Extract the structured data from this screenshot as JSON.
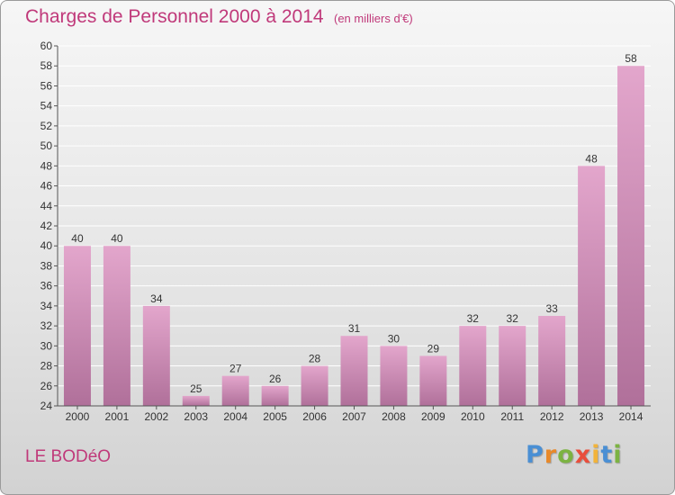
{
  "title": "Charges de Personnel 2000 à 2014",
  "subtitle": "(en milliers d'€)",
  "commune": "LE BODéO",
  "logo_letters": [
    "P",
    "r",
    "o",
    "x",
    "i",
    "t",
    "i"
  ],
  "colors": {
    "title": "#c0397a",
    "bar_top": "#e3a6cc",
    "bar_bottom": "#b0709a",
    "grid": "#ffffff",
    "axis": "#555555"
  },
  "chart_data": {
    "type": "bar",
    "title": "Charges de Personnel 2000 à 2014",
    "subtitle": "(en milliers d'€)",
    "xlabel": "",
    "ylabel": "",
    "categories": [
      "2000",
      "2001",
      "2002",
      "2003",
      "2004",
      "2005",
      "2006",
      "2007",
      "2008",
      "2009",
      "2010",
      "2011",
      "2012",
      "2013",
      "2014"
    ],
    "values": [
      40,
      40,
      34,
      25,
      27,
      26,
      28,
      31,
      30,
      29,
      32,
      32,
      33,
      48,
      58
    ],
    "ylim": [
      24,
      60
    ],
    "yticks": [
      24,
      26,
      28,
      30,
      32,
      34,
      36,
      38,
      40,
      42,
      44,
      46,
      48,
      50,
      52,
      54,
      56,
      58,
      60
    ],
    "grid": true,
    "legend": "none"
  }
}
